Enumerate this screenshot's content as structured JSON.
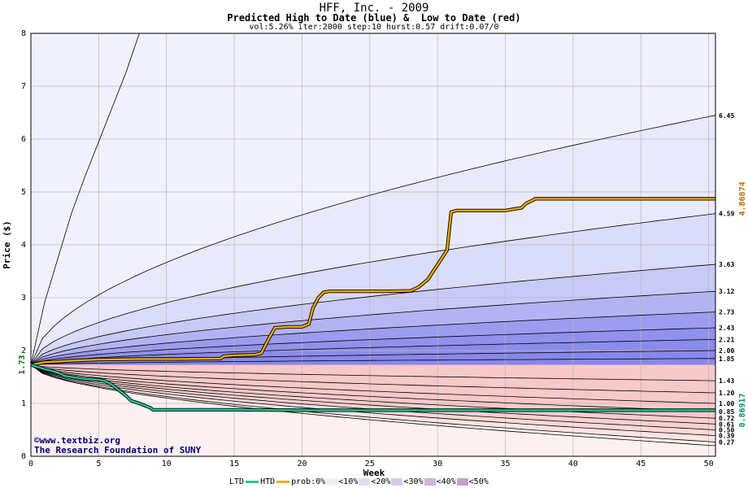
{
  "titles": {
    "main": "HFF, Inc. - 2009",
    "sub": "Predicted High to Date (blue) &  Low to Date (red)",
    "params": "vol:5.26% iter:2000 step:10 hurst:0.57 drift:0.07/0"
  },
  "credits": {
    "url": "©www.textbiz.org",
    "org": "The Research Foundation of SUNY"
  },
  "legend": {
    "ltd": "LTD",
    "htd": "HTD",
    "prob": "prob:0%",
    "bins": [
      "<10%",
      "<20%",
      "<30%",
      "<40%",
      "<50%"
    ]
  },
  "colors": {
    "ltd": "#19c79a",
    "htd": "#f0a800",
    "blue_bands": [
      "#f1f1fd",
      "#e2e2fb",
      "#d0d0f8",
      "#b9b9f4",
      "#a0a0f0",
      "#8686eb"
    ],
    "red_bands": [
      "#fdf0f0",
      "#fbdada",
      "#f7c3c3",
      "#f3adad",
      "#ef9797",
      "#ea8282"
    ],
    "legend_bins": [
      "#f2eef6",
      "#e6dcef",
      "#dac8e8",
      "#cfb4e0",
      "#c39fd8"
    ]
  },
  "chart_data": {
    "type": "line",
    "title": "HFF, Inc. - 2009",
    "subtitle": "Predicted High to Date (blue) &  Low to Date (red)",
    "xlabel": "Week",
    "ylabel": "Price ($)",
    "xlim": [
      0,
      50.5
    ],
    "ylim": [
      0,
      8
    ],
    "x_ticks": [
      0,
      5,
      10,
      15,
      20,
      25,
      30,
      35,
      40,
      45,
      50
    ],
    "y_ticks": [
      0,
      1,
      2,
      3,
      4,
      5,
      6,
      7,
      8
    ],
    "grid": true,
    "start_price": 1.73,
    "start_label": "1.73",
    "blue_curves_end": [
      6.45,
      4.59,
      3.63,
      3.12,
      2.73,
      2.43,
      2.21,
      2.0,
      1.85
    ],
    "red_curves_end": [
      1.43,
      1.2,
      1.0,
      0.85,
      0.72,
      0.61,
      0.5,
      0.39,
      0.27
    ],
    "outer_high_curve": {
      "x": [
        0,
        1,
        2,
        3,
        4,
        5,
        6,
        7,
        8
      ],
      "y": [
        1.73,
        2.9,
        3.75,
        4.6,
        5.3,
        5.95,
        6.6,
        7.25,
        8.0
      ]
    },
    "outer_low_end": 0.2,
    "end_labels": [
      "6.45",
      "4.59",
      "3.63",
      "3.12",
      "2.73",
      "2.43",
      "2.21",
      "2.00",
      "1.85",
      "1.43",
      "1.20",
      "1.00",
      "0.85",
      "0.72",
      "0.61",
      "0.50",
      "0.39",
      "0.27"
    ],
    "series": [
      {
        "name": "HTD",
        "final_label": "4.86874",
        "x": [
          0,
          1,
          2,
          3,
          5,
          8,
          11,
          14,
          14.2,
          15,
          16.5,
          17,
          17.6,
          18,
          19,
          20,
          20.5,
          20.8,
          21.2,
          21.6,
          22,
          24,
          26,
          28,
          28.6,
          29.3,
          29.8,
          30.4,
          30.7,
          31.0,
          31.4,
          33,
          35,
          36.2,
          36.5,
          37.0,
          37.2,
          38,
          40,
          42,
          44,
          46,
          48,
          50.5
        ],
        "y": [
          1.73,
          1.78,
          1.79,
          1.81,
          1.83,
          1.84,
          1.84,
          1.85,
          1.89,
          1.91,
          1.92,
          1.95,
          2.25,
          2.43,
          2.45,
          2.45,
          2.5,
          2.8,
          3.0,
          3.1,
          3.12,
          3.12,
          3.12,
          3.13,
          3.2,
          3.35,
          3.55,
          3.78,
          3.9,
          4.62,
          4.65,
          4.65,
          4.65,
          4.7,
          4.78,
          4.84,
          4.87,
          4.87,
          4.87,
          4.87,
          4.87,
          4.87,
          4.87,
          4.87
        ]
      },
      {
        "name": "LTD",
        "final_label": "0.86917",
        "x": [
          0,
          1,
          1.5,
          2,
          2.5,
          3,
          3.5,
          4,
          5,
          5.5,
          6,
          6.5,
          7,
          7.4,
          8,
          8.5,
          8.8,
          9,
          12,
          15,
          20,
          25,
          30,
          35,
          40,
          45,
          50.5
        ],
        "y": [
          1.73,
          1.65,
          1.62,
          1.58,
          1.52,
          1.5,
          1.48,
          1.46,
          1.45,
          1.42,
          1.35,
          1.25,
          1.15,
          1.05,
          1.0,
          0.95,
          0.92,
          0.88,
          0.88,
          0.88,
          0.87,
          0.87,
          0.87,
          0.87,
          0.87,
          0.87,
          0.87
        ]
      }
    ]
  }
}
